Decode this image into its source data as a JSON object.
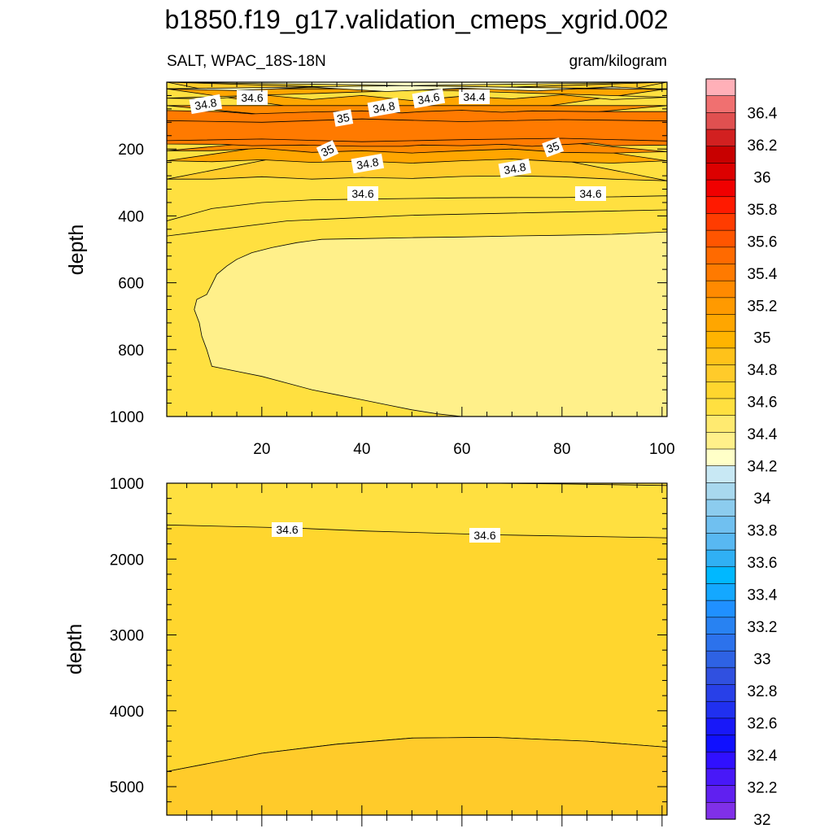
{
  "title": "b1850.f19_g17.validation_cmeps_xgrid.002",
  "chart_data": [
    {
      "type": "contour",
      "variable": "SALT, WPAC_18S-18N",
      "units": "gram/kilogram",
      "ylabel": "depth",
      "xlim": [
        1,
        101
      ],
      "ylim": [
        0,
        1000
      ],
      "y_reversed": true,
      "x_ticks": [
        "20",
        "40",
        "60",
        "80",
        "100"
      ],
      "y_ticks": [
        "200",
        "400",
        "600",
        "800",
        "1000"
      ],
      "contour_labels": [
        "34.8",
        "34.6",
        "34.6",
        "34.4",
        "34.8",
        "35",
        "35",
        "34.8",
        "34.8",
        "35",
        "34.6",
        "34.6"
      ],
      "regions": [
        {
          "level": 34.5,
          "top": [
            [
              1,
              415
            ],
            [
              10,
              378
            ],
            [
              20,
              360
            ],
            [
              30,
              352
            ],
            [
              40,
              350
            ],
            [
              50,
              348
            ],
            [
              60,
              346
            ],
            [
              70,
              345
            ],
            [
              80,
              345
            ],
            [
              90,
              343
            ],
            [
              101,
              340
            ]
          ]
        },
        {
          "level": 34.4,
          "top": [
            [
              6.5,
              680
            ],
            [
              7,
              650
            ],
            [
              9,
              635
            ],
            [
              10,
              605
            ],
            [
              11,
              575
            ],
            [
              13,
              550
            ],
            [
              15,
              530
            ],
            [
              18,
              510
            ],
            [
              22,
              495
            ],
            [
              27,
              480
            ],
            [
              32,
              470
            ],
            [
              40,
              468
            ],
            [
              50,
              465
            ],
            [
              60,
              463
            ],
            [
              70,
              460
            ],
            [
              80,
              458
            ],
            [
              90,
              455
            ],
            [
              101,
              448
            ]
          ],
          "bottom": [
            [
              101,
              1000
            ],
            [
              70,
              1000
            ],
            [
              60,
              1000
            ],
            [
              55,
              992
            ],
            [
              50,
              980
            ],
            [
              45,
              965
            ],
            [
              40,
              950
            ],
            [
              35,
              935
            ],
            [
              30,
              920
            ],
            [
              25,
              900
            ],
            [
              20,
              880
            ],
            [
              15,
              865
            ],
            [
              10,
              850
            ],
            [
              9,
              800
            ],
            [
              8,
              760
            ],
            [
              7.5,
              720
            ]
          ]
        },
        {
          "level": 34.7,
          "top": [
            [
              1,
              0
            ],
            [
              101,
              0
            ]
          ],
          "bottom": [
            [
              1,
              290
            ],
            [
              10,
              290
            ],
            [
              20,
              283
            ],
            [
              30,
              290
            ],
            [
              40,
              285
            ],
            [
              50,
              288
            ],
            [
              60,
              282
            ],
            [
              70,
              280
            ],
            [
              80,
              283
            ],
            [
              90,
              290
            ],
            [
              101,
              295
            ]
          ]
        },
        {
          "level": 34.9,
          "top": [
            [
              1,
              20
            ],
            [
              101,
              20
            ]
          ],
          "bottom": [
            [
              1,
              235
            ],
            [
              10,
              238
            ],
            [
              20,
              232
            ],
            [
              30,
              240
            ],
            [
              40,
              236
            ],
            [
              50,
              242
            ],
            [
              60,
              235
            ],
            [
              70,
              230
            ],
            [
              80,
              238
            ],
            [
              90,
              242
            ],
            [
              101,
              235
            ]
          ]
        },
        {
          "level": 35.1,
          "top": [
            [
              1,
              70
            ],
            [
              101,
              70
            ]
          ],
          "bottom": [
            [
              1,
              205
            ],
            [
              10,
              205
            ],
            [
              20,
              198
            ],
            [
              30,
              210
            ],
            [
              40,
              205
            ],
            [
              50,
              212
            ],
            [
              60,
              205
            ],
            [
              70,
              200
            ],
            [
              80,
              210
            ],
            [
              90,
              212
            ],
            [
              101,
              208
            ]
          ]
        },
        {
          "level": 35.2,
          "top": [
            [
              1,
              85
            ],
            [
              12,
              88
            ],
            [
              18,
              95
            ],
            [
              28,
              90
            ],
            [
              40,
              86
            ],
            [
              48,
              92
            ],
            [
              52,
              88
            ],
            [
              60,
              84
            ],
            [
              68,
              90
            ],
            [
              74,
              86
            ],
            [
              86,
              88
            ],
            [
              101,
              88
            ]
          ],
          "bottom": [
            [
              101,
              188
            ],
            [
              90,
              190
            ],
            [
              86,
              182
            ],
            [
              74,
              192
            ],
            [
              68,
              186
            ],
            [
              60,
              190
            ],
            [
              52,
              188
            ],
            [
              48,
              192
            ],
            [
              40,
              192
            ],
            [
              28,
              188
            ],
            [
              18,
              190
            ],
            [
              12,
              186
            ],
            [
              1,
              185
            ]
          ]
        },
        {
          "level": 34.5,
          "top": [
            [
              1,
              0
            ],
            [
              101,
              0
            ]
          ],
          "bottom": [
            [
              1,
              48
            ],
            [
              10,
              50
            ],
            [
              20,
              38
            ],
            [
              30,
              52
            ],
            [
              40,
              40
            ],
            [
              50,
              55
            ],
            [
              60,
              42
            ],
            [
              70,
              50
            ],
            [
              80,
              38
            ],
            [
              90,
              52
            ],
            [
              101,
              45
            ]
          ]
        },
        {
          "level": 34.3,
          "top": [
            [
              1,
              0
            ],
            [
              101,
              0
            ]
          ],
          "bottom": [
            [
              1,
              20
            ],
            [
              15,
              25
            ],
            [
              30,
              15
            ],
            [
              45,
              28
            ],
            [
              60,
              18
            ],
            [
              75,
              26
            ],
            [
              90,
              14
            ],
            [
              101,
              22
            ]
          ]
        }
      ],
      "lines": [
        [
          [
            1,
            460
          ],
          [
            25,
            415
          ],
          [
            50,
            398
          ],
          [
            75,
            390
          ],
          [
            101,
            382
          ]
        ],
        [
          [
            1,
            175
          ],
          [
            20,
            170
          ],
          [
            40,
            178
          ],
          [
            60,
            172
          ],
          [
            80,
            168
          ],
          [
            101,
            176
          ]
        ],
        [
          [
            1,
            115
          ],
          [
            20,
            120
          ],
          [
            40,
            110
          ],
          [
            60,
            118
          ],
          [
            80,
            112
          ],
          [
            101,
            116
          ]
        ]
      ]
    },
    {
      "type": "contour",
      "ylabel": "depth",
      "xlim": [
        1,
        101
      ],
      "ylim": [
        1000,
        5375
      ],
      "y_reversed": true,
      "x_ticks": [],
      "y_ticks": [
        "1000",
        "2000",
        "3000",
        "4000",
        "5000"
      ],
      "contour_labels": [
        "34.6",
        "34.6"
      ],
      "regions": [
        {
          "level": 34.6,
          "top": [
            [
              1,
              1550
            ],
            [
              26,
              1590
            ],
            [
              41,
              1630
            ],
            [
              66,
              1680
            ],
            [
              101,
              1720
            ]
          ],
          "bottom": [
            [
              101,
              4480
            ],
            [
              85,
              4400
            ],
            [
              66,
              4350
            ],
            [
              50,
              4360
            ],
            [
              35,
              4440
            ],
            [
              20,
              4560
            ],
            [
              1,
              4800
            ]
          ]
        },
        {
          "level": 34.7,
          "top": [
            [
              1,
              4800
            ],
            [
              20,
              4560
            ],
            [
              35,
              4440
            ],
            [
              50,
              4360
            ],
            [
              66,
              4350
            ],
            [
              85,
              4400
            ],
            [
              101,
              4480
            ]
          ],
          "bottom": [
            [
              101,
              5375
            ],
            [
              1,
              5375
            ]
          ]
        }
      ],
      "lines": [
        [
          [
            66,
            1000
          ],
          [
            80,
            1010
          ],
          [
            101,
            1030
          ]
        ]
      ]
    }
  ],
  "colorbar": {
    "labels": [
      "36.4",
      "36.2",
      "36",
      "35.8",
      "35.6",
      "35.4",
      "35.2",
      "35",
      "34.8",
      "34.6",
      "34.4",
      "34.2",
      "34",
      "33.8",
      "33.6",
      "33.4",
      "33.2",
      "33",
      "32.8",
      "32.6",
      "32.4",
      "32.2",
      "32"
    ],
    "colors": [
      "#FFB0B8",
      "#F07070",
      "#E05050",
      "#D22020",
      "#C80000",
      "#DC0000",
      "#F00000",
      "#FF1A00",
      "#FF3C00",
      "#FF5500",
      "#FF6A00",
      "#FF7A00",
      "#FF8A00",
      "#FF9A00",
      "#FFA600",
      "#FFB400",
      "#FFC21A",
      "#FFCB2A",
      "#FFD62E",
      "#FFE040",
      "#FFEA70",
      "#FFF08A",
      "#FFFFC8",
      "#C8E8F4",
      "#A8D8EE",
      "#8CCCEE",
      "#70C0F0",
      "#58B8F2",
      "#30B0F4",
      "#00B8FF",
      "#14A8FF",
      "#2090FF",
      "#2882F2",
      "#2C72EC",
      "#2E62E4",
      "#3050E0",
      "#2840E8",
      "#2030F0",
      "#1818F8",
      "#1010FF",
      "#3010FF",
      "#4818F8",
      "#6020F0",
      "#8030E8"
    ]
  }
}
